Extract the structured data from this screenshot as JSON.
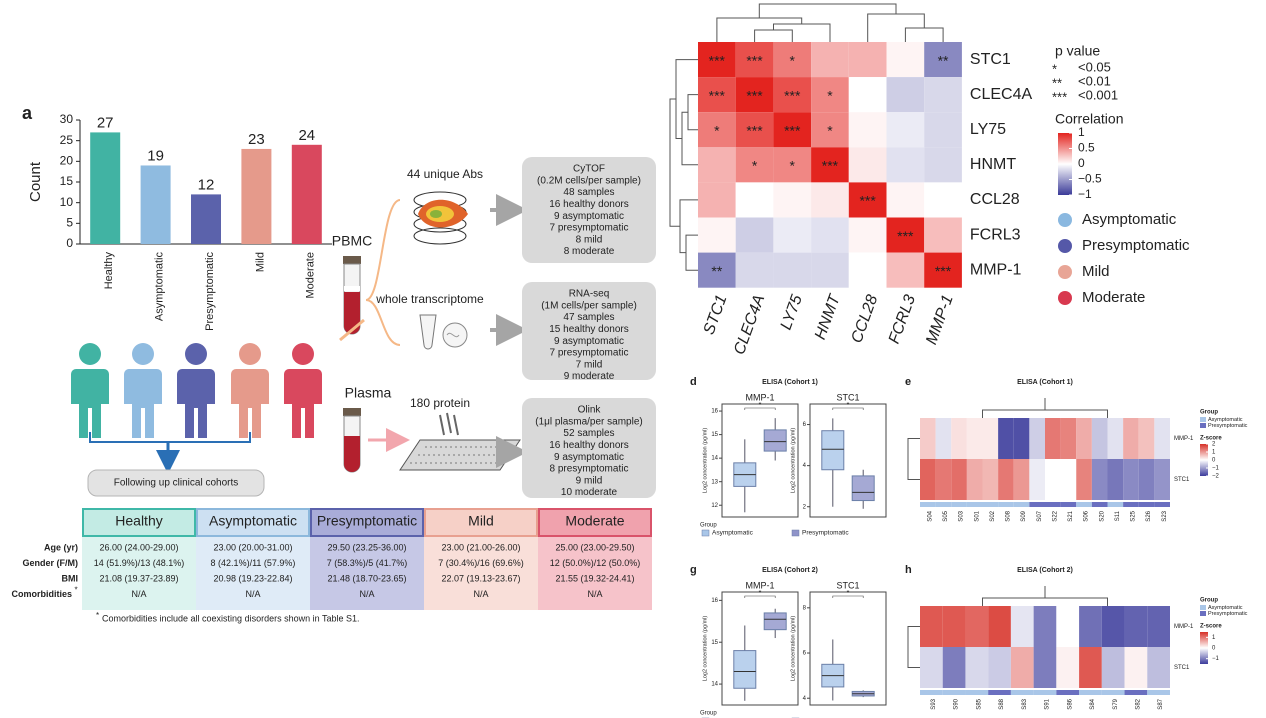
{
  "chart_data": [
    {
      "type": "bar",
      "panel": "a",
      "ylabel": "Count",
      "categories": [
        "Healthy",
        "Asymptomatic",
        "Presymptomatic",
        "Mild",
        "Moderate"
      ],
      "values": [
        27,
        19,
        12,
        23,
        24
      ],
      "colors": [
        "#41b3a3",
        "#8fbbe0",
        "#5b62ab",
        "#e59a8b",
        "#d9485e"
      ],
      "ylim": [
        0,
        30
      ],
      "yticks": [
        0,
        5,
        10,
        15,
        20,
        25,
        30
      ]
    },
    {
      "type": "heatmap",
      "rows": [
        "STC1",
        "CLEC4A",
        "LY75",
        "HNMT",
        "CCL28",
        "FCRL3",
        "MMP-1"
      ],
      "columns": [
        "STC1",
        "CLEC4A",
        "LY75",
        "HNMT",
        "CCL28",
        "FCRL3",
        "MMP-1"
      ],
      "values": [
        [
          1,
          0.8,
          0.6,
          0.35,
          0.35,
          0.05,
          -0.6
        ],
        [
          0.8,
          1,
          0.8,
          0.55,
          0,
          -0.25,
          -0.2
        ],
        [
          0.6,
          0.8,
          1,
          0.55,
          0.05,
          -0.1,
          -0.2
        ],
        [
          0.35,
          0.55,
          0.55,
          1,
          0.1,
          -0.15,
          -0.2
        ],
        [
          0.35,
          0,
          0.05,
          0.1,
          1,
          0.05,
          0
        ],
        [
          0.05,
          -0.25,
          -0.1,
          -0.15,
          0.05,
          1,
          0.3
        ],
        [
          -0.6,
          -0.2,
          -0.2,
          -0.2,
          0,
          0.3,
          1
        ]
      ],
      "stars": [
        [
          "***",
          "***",
          "*",
          null,
          null,
          null,
          "**"
        ],
        [
          "***",
          "***",
          "***",
          "*",
          null,
          null,
          null
        ],
        [
          "*",
          "***",
          "***",
          "*",
          null,
          null,
          null
        ],
        [
          null,
          "*",
          "*",
          "***",
          null,
          null,
          null
        ],
        [
          null,
          null,
          null,
          null,
          "***",
          null,
          null
        ],
        [
          null,
          null,
          null,
          null,
          null,
          "***",
          null
        ],
        [
          "**",
          null,
          null,
          null,
          null,
          null,
          "***"
        ]
      ],
      "p_value": {
        "title": "p value",
        "items": [
          {
            "symbol": "*",
            "label": "<0.05"
          },
          {
            "symbol": "**",
            "label": "<0.01"
          },
          {
            "symbol": "***",
            "label": "<0.001"
          }
        ]
      },
      "colorbar_title": "Correlation",
      "zlim": [
        -1,
        1
      ],
      "colorbar_ticks": [
        1,
        0.5,
        0,
        {
          "value": -0.5,
          "label": "−0.5"
        },
        {
          "value": -1,
          "label": "−1"
        }
      ],
      "series": [
        {
          "name": "Asymptomatic",
          "color": "#8ab8e0"
        },
        {
          "name": "Presymptomatic",
          "color": "#5558a8"
        },
        {
          "name": "Mild",
          "color": "#e8a596"
        },
        {
          "name": "Moderate",
          "color": "#d8394f"
        }
      ]
    },
    {
      "type": "box",
      "panel": "d",
      "title": "ELISA (Cohort 1)",
      "subplots": [
        {
          "title": "MMP-1",
          "ylabel": "Log2 concentration (pg/ml)",
          "ylim": [
            11.5,
            16.3
          ],
          "yticks": [
            12,
            13,
            14,
            15,
            16
          ],
          "significance": "*",
          "boxes": [
            {
              "min": 11.7,
              "q1": 12.8,
              "median": 13.3,
              "q3": 13.8,
              "max": 14.8
            },
            {
              "min": 13.9,
              "q1": 14.3,
              "median": 14.7,
              "q3": 15.2,
              "max": 15.7
            }
          ]
        },
        {
          "title": "STC1",
          "ylabel": "Log2 concentration (pg/ml)",
          "ylim": [
            1.5,
            7
          ],
          "yticks": [
            2,
            4,
            6
          ],
          "significance": "*",
          "boxes": [
            {
              "min": 2,
              "q1": 3.8,
              "median": 4.8,
              "q3": 5.7,
              "max": 6.3
            },
            {
              "min": 1.9,
              "q1": 2.3,
              "median": 2.7,
              "q3": 3.5,
              "max": 3.8
            }
          ]
        }
      ],
      "legend_title": "Group",
      "series": [
        {
          "name": "Asymptomatic",
          "color": "#a9c6e8"
        },
        {
          "name": "Presymptomatic",
          "color": "#8f93c9"
        }
      ]
    },
    {
      "type": "heatmap",
      "panel": "e",
      "title": "ELISA (Cohort 1)",
      "rows": [
        "MMP-1",
        "STC1"
      ],
      "columns": [
        "S04",
        "S05",
        "S03",
        "S01",
        "S02",
        "S08",
        "S09",
        "S07",
        "S22",
        "S21",
        "S06",
        "S20",
        "S11",
        "S25",
        "S26",
        "S23"
      ],
      "values": [
        [
          0.5,
          -0.3,
          0.3,
          0.2,
          0.2,
          -1.8,
          -1.8,
          -0.5,
          1.3,
          1.2,
          0.8,
          -0.6,
          -0.3,
          0.8,
          0.6,
          -0.3
        ],
        [
          1.5,
          1.3,
          1.4,
          0.8,
          0.7,
          1.3,
          1.0,
          -0.2,
          0,
          0,
          1.2,
          -1.2,
          -1.4,
          -1.2,
          -1.3,
          -1.1
        ]
      ],
      "column_groups": [
        "Asymptomatic",
        "Asymptomatic",
        "Asymptomatic",
        "Asymptomatic",
        "Asymptomatic",
        "Asymptomatic",
        "Asymptomatic",
        "Presymptomatic",
        "Presymptomatic",
        "Presymptomatic",
        "Asymptomatic",
        "Presymptomatic",
        "Asymptomatic",
        "Presymptomatic",
        "Presymptomatic",
        "Presymptomatic"
      ],
      "legend_title": "Group",
      "series": [
        {
          "name": "Asymptomatic",
          "color": "#a9c6e8"
        },
        {
          "name": "Presymptomatic",
          "color": "#6a6fc0"
        }
      ],
      "colorbar_title": "Z-score",
      "zlim": [
        -2,
        2
      ],
      "colorbar_ticks": [
        2,
        1,
        0,
        {
          "value": -1,
          "label": "−1"
        },
        {
          "value": -2,
          "label": "−2"
        }
      ]
    },
    {
      "type": "box",
      "panel": "g",
      "title": "ELISA (Cohort 2)",
      "subplots": [
        {
          "title": "MMP-1",
          "ylabel": "Log2 concentration (pg/ml)",
          "ylim": [
            13.5,
            16.2
          ],
          "yticks": [
            14,
            15,
            16
          ],
          "significance": "*",
          "boxes": [
            {
              "min": 13.6,
              "q1": 13.9,
              "median": 14.3,
              "q3": 14.8,
              "max": 15.4
            },
            {
              "min": 15.1,
              "q1": 15.3,
              "median": 15.55,
              "q3": 15.7,
              "max": 15.8
            }
          ]
        },
        {
          "title": "STC1",
          "ylabel": "Log2 concentration (pg/ml)",
          "ylim": [
            3.7,
            8.7
          ],
          "yticks": [
            4,
            6,
            8
          ],
          "significance": "*",
          "boxes": [
            {
              "min": 3.9,
              "q1": 4.5,
              "median": 5,
              "q3": 5.5,
              "max": 6.6
            },
            {
              "min": 4.05,
              "q1": 4.1,
              "median": 4.2,
              "q3": 4.3,
              "max": 4.35
            }
          ]
        }
      ],
      "legend_title": "Group",
      "series": [
        {
          "name": "Asymptomatic",
          "color": "#a9c6e8"
        },
        {
          "name": "Presymptomatic",
          "color": "#8f93c9"
        }
      ]
    },
    {
      "type": "heatmap",
      "panel": "h",
      "title": "ELISA (Cohort 2)",
      "rows": [
        "MMP-1",
        "STC1"
      ],
      "columns": [
        "S93",
        "S90",
        "S85",
        "S88",
        "S83",
        "S91",
        "S86",
        "S84",
        "S79",
        "S82",
        "S87"
      ],
      "values": [
        [
          1.2,
          1.2,
          1.1,
          1.3,
          -0.2,
          -1.0,
          0,
          -1.1,
          -1.3,
          -1.2,
          -1.2
        ],
        [
          -0.3,
          -1.0,
          -0.3,
          -0.4,
          0.6,
          -1.0,
          0.1,
          1.2,
          -0.5,
          0.1,
          -0.5
        ]
      ],
      "column_groups": [
        "Asymptomatic",
        "Asymptomatic",
        "Asymptomatic",
        "Presymptomatic",
        "Asymptomatic",
        "Asymptomatic",
        "Presymptomatic",
        "Asymptomatic",
        "Asymptomatic",
        "Presymptomatic",
        "Asymptomatic"
      ],
      "legend_title": "Group",
      "series": [
        {
          "name": "Asymptomatic",
          "color": "#a9c6e8"
        },
        {
          "name": "Presymptomatic",
          "color": "#6a6fc0"
        }
      ],
      "colorbar_title": "Z-score",
      "zlim": [
        -1.5,
        1.5
      ],
      "colorbar_ticks": [
        1,
        0,
        {
          "value": -1,
          "label": "−1"
        }
      ]
    }
  ],
  "diagram": {
    "pbmc": "PBMC",
    "plasma": "Plasma",
    "cohort_box": "Following up clinical cohorts",
    "assays": [
      {
        "label": "44 unique Abs",
        "box": [
          "CyTOF",
          "(0.2M cells/per sample)",
          "48 samples",
          "16 healthy donors",
          "9 asymptomatic",
          "7 presymptomatic",
          "8 mild",
          "8 moderate"
        ]
      },
      {
        "label": "whole transcriptome",
        "box": [
          "RNA-seq",
          "(1M cells/per sample)",
          "47 samples",
          "15 healthy donors",
          "9 asymptomatic",
          "7 presymptomatic",
          "7 mild",
          "9 moderate"
        ]
      },
      {
        "label": "180 protein",
        "box": [
          "Olink",
          "(1μl plasma/per sample)",
          "52 samples",
          "16 healthy donors",
          "9 asymptomatic",
          "8 presymptomatic",
          "9 mild",
          "10 moderate"
        ]
      }
    ]
  },
  "table": {
    "columns": [
      "Healthy",
      "Asymptomatic",
      "Presymptomatic",
      "Mild",
      "Moderate"
    ],
    "rows": [
      {
        "label": "Age (yr)",
        "cells": [
          "26.00 (24.00-29.00)",
          "23.00 (20.00-31.00)",
          "29.50 (23.25-36.00)",
          "23.00 (21.00-26.00)",
          "25.00 (23.00-29.50)"
        ]
      },
      {
        "label": "Gender (F/M)",
        "cells": [
          "14 (51.9%)/13 (48.1%)",
          "8 (42.1%)/11 (57.9%)",
          "7 (58.3%)/5 (41.7%)",
          "7 (30.4%)/16 (69.6%)",
          "12 (50.0%)/12 (50.0%)"
        ]
      },
      {
        "label": "BMI",
        "cells": [
          "21.08 (19.37-23.89)",
          "20.98 (19.23-22.84)",
          "21.48 (18.70-23.65)",
          "22.07 (19.13-23.67)",
          "21.55 (19.32-24.41)"
        ]
      },
      {
        "label": "Comorbidities",
        "mark": "*",
        "cells": [
          "N/A",
          "N/A",
          "N/A",
          "N/A",
          "N/A"
        ]
      }
    ],
    "footnote_mark": "*",
    "footnote": "Comorbidities include all coexisting disorders shown in Table S1."
  }
}
